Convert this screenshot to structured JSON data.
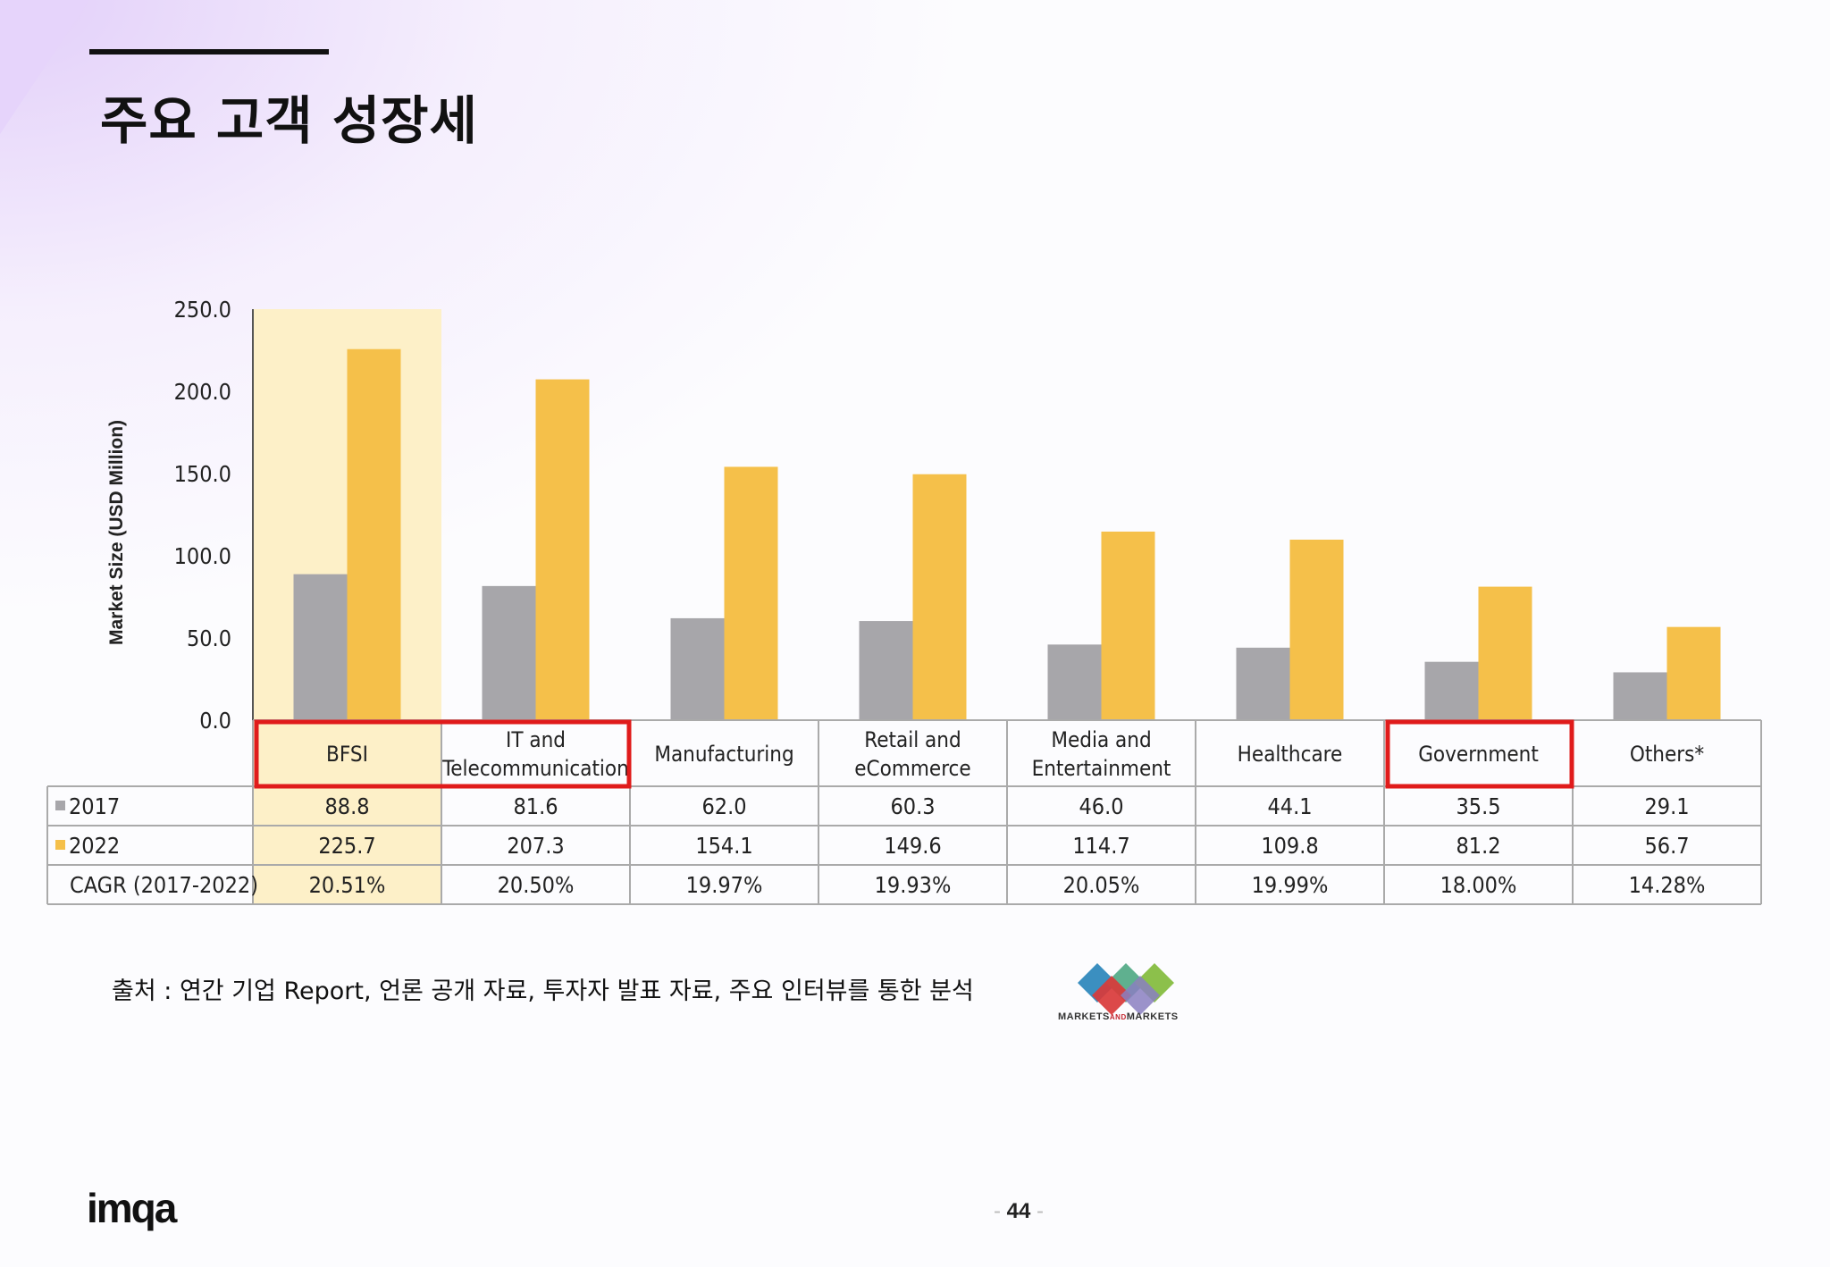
{
  "page": {
    "title": "주요 고객 성장세",
    "source": "출처 : 연간 기업 Report, 언론 공개 자료, 투자자 발표 자료,  주요 인터뷰를 통한 분석",
    "page_number": "44",
    "logo_text": "imqa",
    "source_logo": "MARKETSANDMARKETS"
  },
  "colors": {
    "series_2017": "#a7a6aa",
    "series_2022": "#f5c04a",
    "highlight_fill": "#fdf0c8",
    "highlight_box": "#e01b1b",
    "grid_line": "#aaaaaa",
    "text": "#222222"
  },
  "chart_data": {
    "type": "bar",
    "ylabel": "Market Size (USD Million)",
    "ylim": [
      0,
      250
    ],
    "yticks": [
      "250.0",
      "200.0",
      "150.0",
      "100.0",
      "50.0",
      "0.0"
    ],
    "categories": [
      "BFSI",
      "IT and Telecommunication",
      "Manufacturing",
      "Retail and eCommerce",
      "Media and Entertainment",
      "Healthcare",
      "Government",
      "Others*"
    ],
    "category_lines": [
      [
        "BFSI"
      ],
      [
        "IT and",
        "Telecommunication"
      ],
      [
        "Manufacturing"
      ],
      [
        "Retail and",
        "eCommerce"
      ],
      [
        "Media and",
        "Entertainment"
      ],
      [
        "Healthcare"
      ],
      [
        "Government"
      ],
      [
        "Others*"
      ]
    ],
    "series": [
      {
        "name": "2017",
        "values": [
          88.8,
          81.6,
          62.0,
          60.3,
          46.0,
          44.1,
          35.5,
          29.1
        ],
        "labels": [
          "88.8",
          "81.6",
          "62.0",
          "60.3",
          "46.0",
          "44.1",
          "35.5",
          "29.1"
        ]
      },
      {
        "name": "2022",
        "values": [
          225.7,
          207.3,
          154.1,
          149.6,
          114.7,
          109.8,
          81.2,
          56.7
        ],
        "labels": [
          "225.7",
          "207.3",
          "154.1",
          "149.6",
          "114.7",
          "109.8",
          "81.2",
          "56.7"
        ]
      }
    ],
    "table_rows": [
      {
        "label": "2017",
        "key": "2017"
      },
      {
        "label": "2022",
        "key": "2022"
      },
      {
        "label": "CAGR (2017-2022)",
        "values": [
          "20.51%",
          "20.50%",
          "19.97%",
          "19.93%",
          "20.05%",
          "19.99%",
          "18.00%",
          "14.28%"
        ]
      }
    ],
    "highlighted_category": "BFSI",
    "boxed_categories": [
      "BFSI",
      "IT and Telecommunication",
      "Government"
    ],
    "legend": "data-table-rows"
  }
}
